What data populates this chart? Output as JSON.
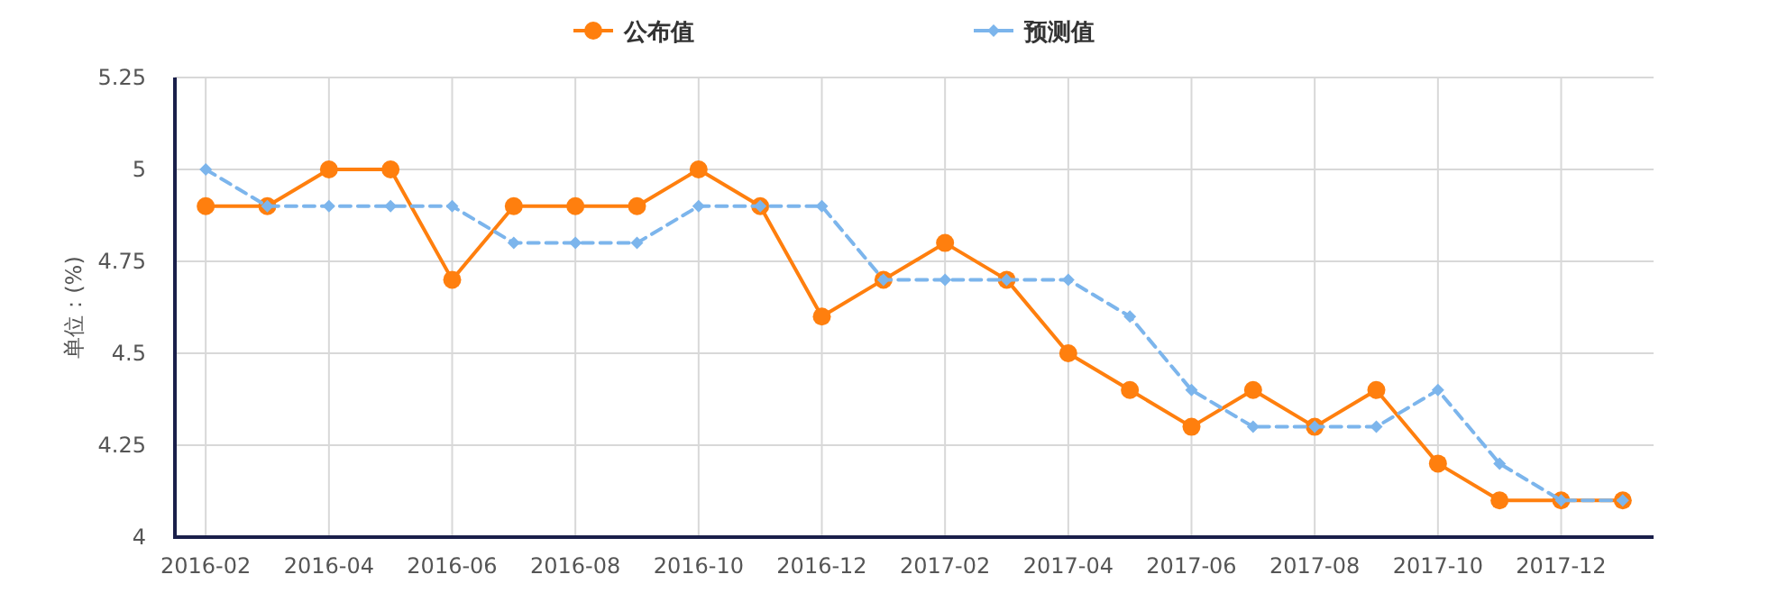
{
  "chart_data": {
    "type": "line",
    "ylabel": "单位：(%)",
    "categories": [
      "2016-02",
      null,
      "2016-04",
      null,
      "2016-06",
      null,
      "2016-08",
      null,
      "2016-10",
      null,
      "2016-12",
      null,
      "2017-02",
      null,
      "2017-04",
      null,
      "2017-06",
      null,
      "2017-08",
      null,
      "2017-10",
      null,
      "2017-12",
      null
    ],
    "ylim": [
      4,
      5.25
    ],
    "yticks": [
      4,
      4.25,
      4.5,
      4.75,
      5,
      5.25
    ],
    "grid": true,
    "legend": "top",
    "series": [
      {
        "name": "公布值",
        "color": "#ff7f0e",
        "marker": "circle",
        "line_style": "solid",
        "values": [
          4.9,
          4.9,
          5.0,
          5.0,
          4.7,
          4.9,
          4.9,
          4.9,
          5.0,
          4.9,
          4.6,
          4.7,
          4.8,
          4.7,
          4.5,
          4.4,
          4.3,
          4.4,
          4.3,
          4.4,
          4.2,
          4.1,
          4.1,
          4.1
        ]
      },
      {
        "name": "预测值",
        "color": "#7cb5ec",
        "marker": "diamond",
        "line_style": "dashed",
        "values": [
          5.0,
          4.9,
          4.9,
          4.9,
          4.9,
          4.8,
          4.8,
          4.8,
          4.9,
          4.9,
          4.9,
          4.7,
          4.7,
          4.7,
          4.7,
          4.6,
          4.4,
          4.3,
          4.3,
          4.3,
          4.4,
          4.2,
          4.1,
          4.1
        ]
      }
    ]
  }
}
